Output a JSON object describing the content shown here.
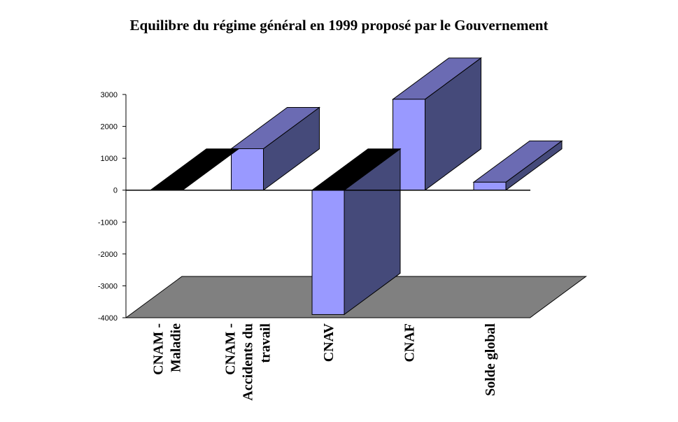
{
  "chart_data": {
    "type": "bar",
    "title": "Equilibre du régime général en 1999 proposé par le Gouvernement",
    "xlabel": "",
    "ylabel": "",
    "ylim": [
      -4000,
      3000
    ],
    "yticks": [
      "3000",
      "2000",
      "1000",
      "0",
      "-1000",
      "-2000",
      "-3000",
      "-4000"
    ],
    "ytick_values": [
      3000,
      2000,
      1000,
      0,
      -1000,
      -2000,
      -3000,
      -4000
    ],
    "categories": [
      "CNAM - Maladie",
      "CNAM - Accidents du travail",
      "CNAV",
      "CNAF",
      "Solde global"
    ],
    "category_lines": [
      [
        "CNAM -",
        "Maladie"
      ],
      [
        "CNAM -",
        "Accidents du",
        "travail"
      ],
      [
        "CNAV"
      ],
      [
        "CNAF"
      ],
      [
        "Solde global"
      ]
    ],
    "values": [
      0,
      1300,
      -3900,
      2850,
      250
    ],
    "grid": false,
    "legend": "none",
    "colors": {
      "bar_front": "#9999ff",
      "bar_top": "#6b6bb3",
      "bar_side": "#454a7a",
      "zero_value": "#000000",
      "floor": "#808080",
      "outline": "#000000"
    }
  }
}
